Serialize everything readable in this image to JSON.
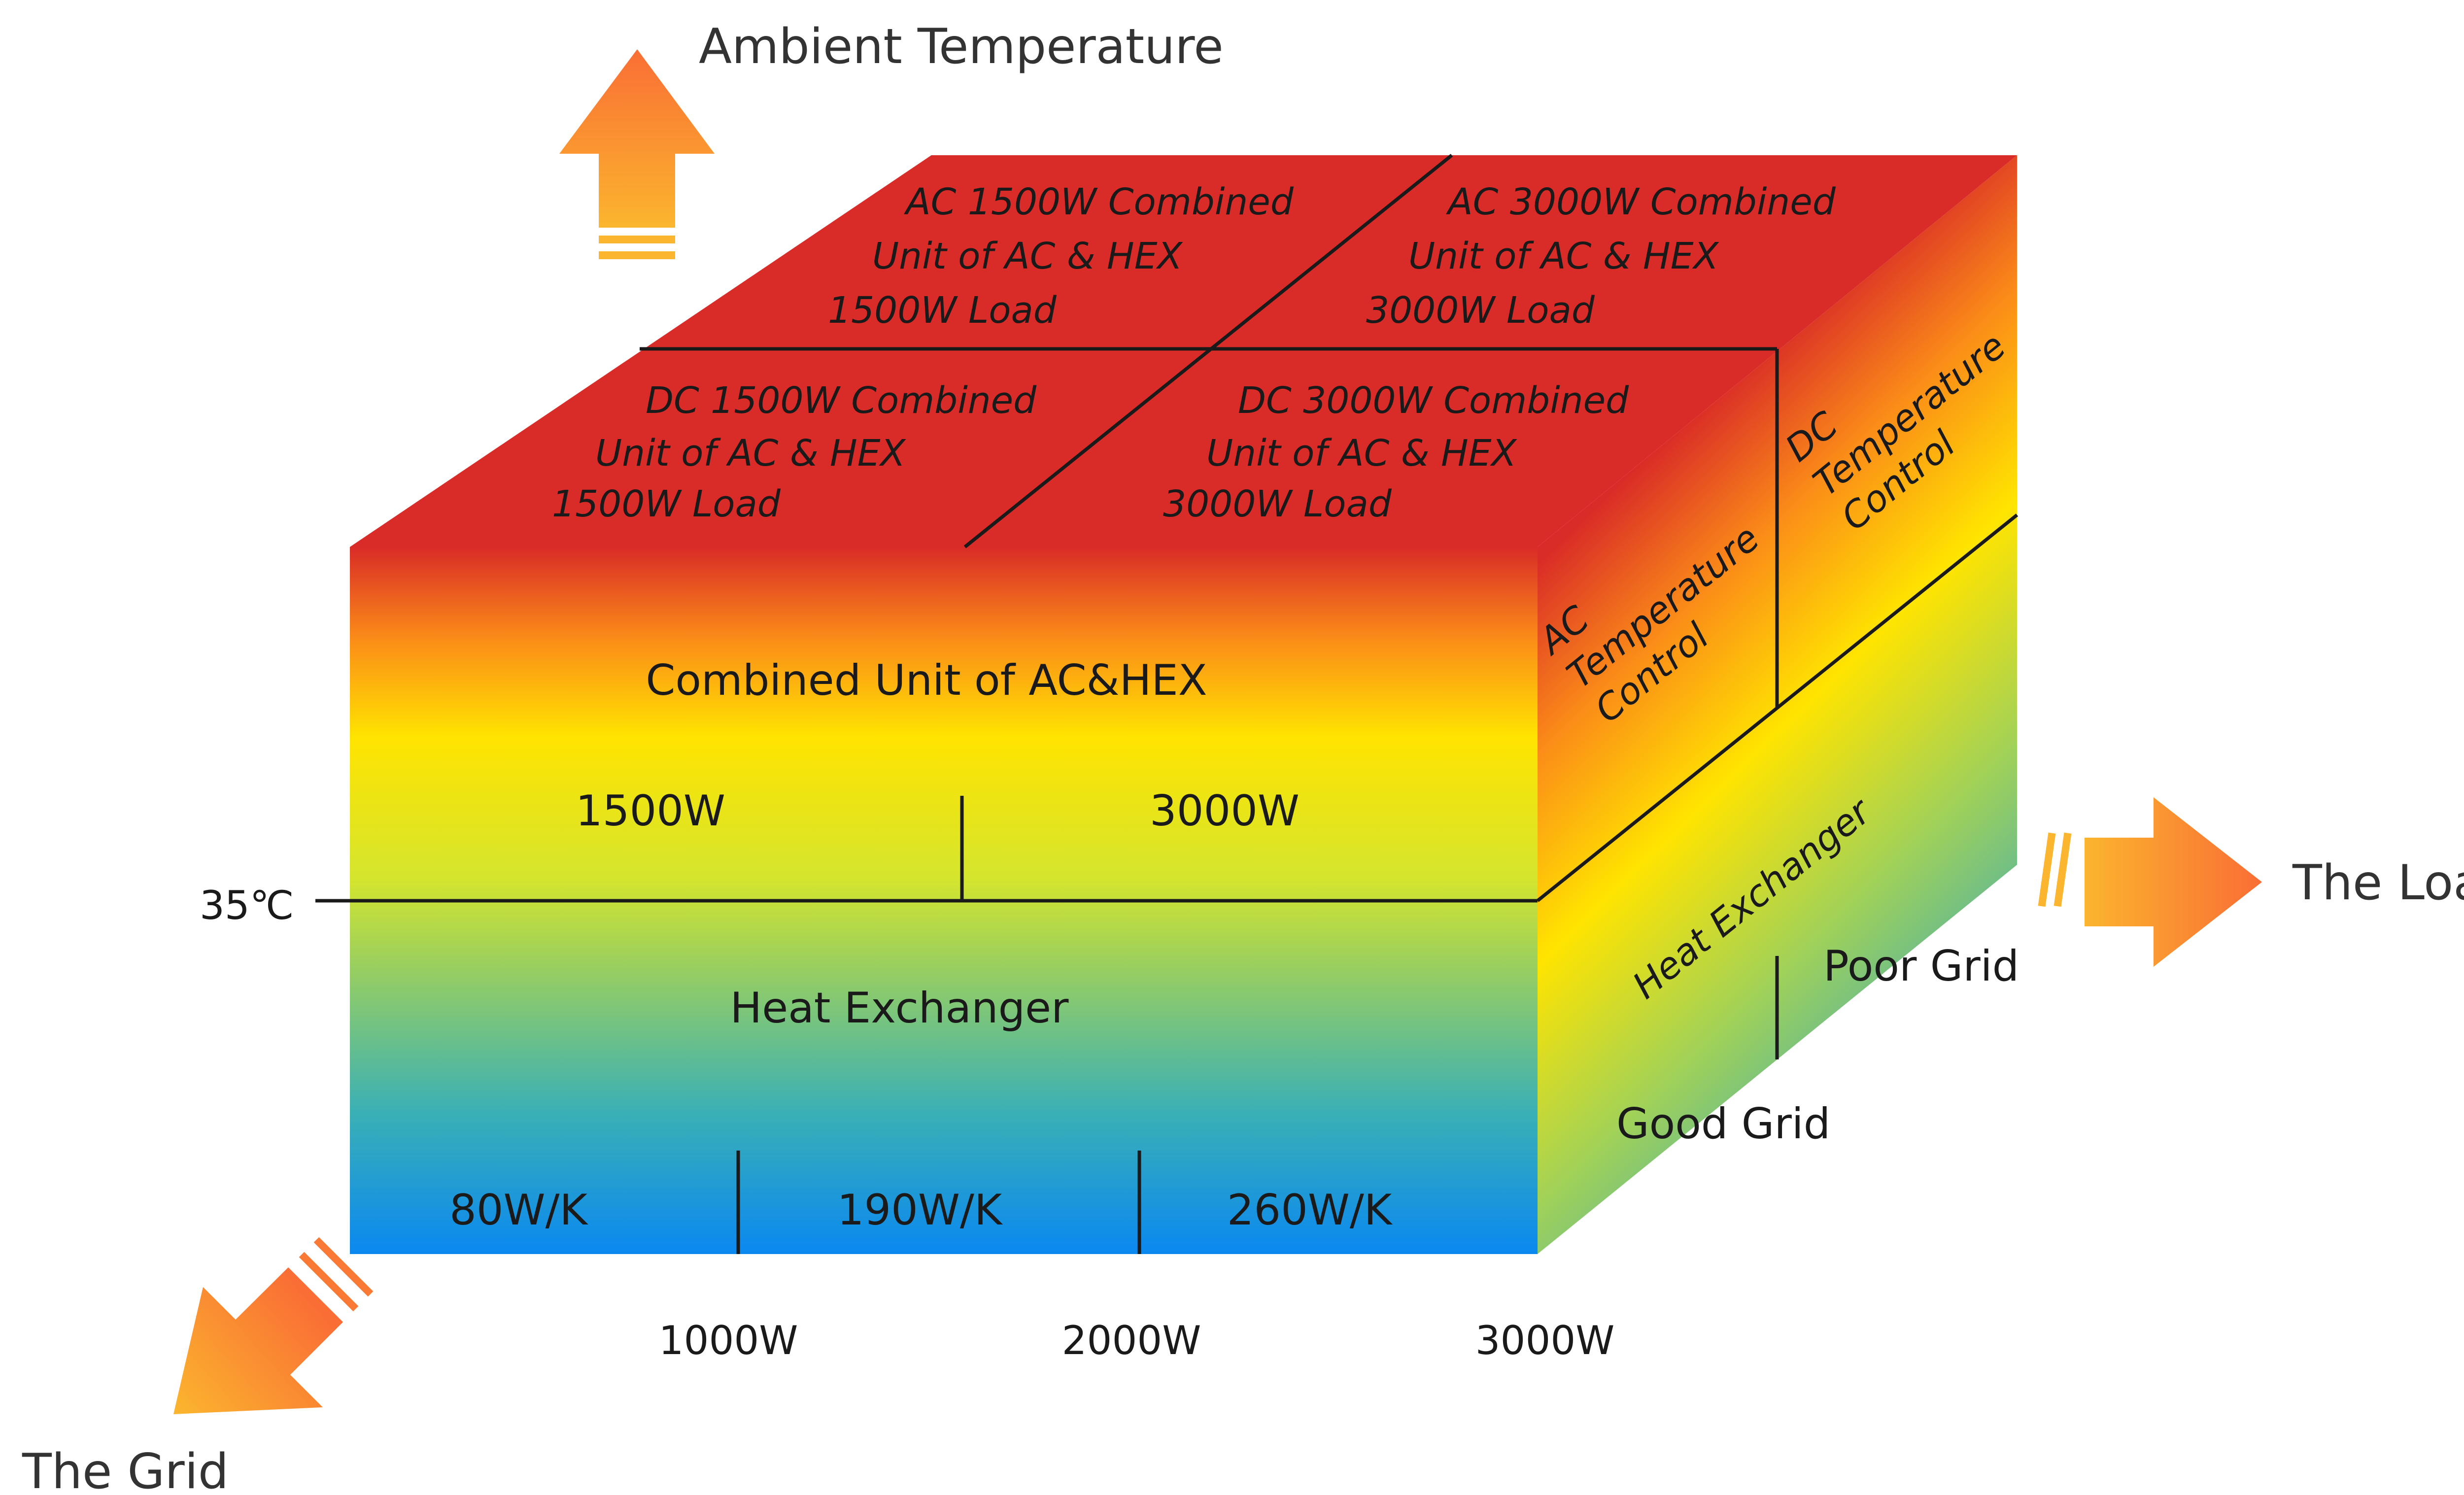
{
  "axes": {
    "up": "Ambient Temperature",
    "right": "The Load",
    "down_left": "The Grid"
  },
  "front": {
    "upper_title": "Combined Unit of AC&HEX",
    "upper_values": [
      "1500W",
      "3000W"
    ],
    "lower_title": "Heat Exchanger",
    "lower_values": [
      "80W/K",
      "190W/K",
      "260W/K"
    ],
    "temperature_marker": "35℃",
    "load_ticks": [
      "1000W",
      "2000W",
      "3000W"
    ]
  },
  "top": {
    "cells": [
      [
        "AC 1500W Combined",
        "Unit of AC & HEX",
        "1500W Load"
      ],
      [
        "AC 3000W Combined",
        "Unit of AC & HEX",
        "3000W Load"
      ],
      [
        "DC 1500W Combined",
        "Unit of AC & HEX",
        "1500W Load"
      ],
      [
        "DC 3000W Combined",
        "Unit of AC & HEX",
        "3000W Load"
      ]
    ]
  },
  "side": {
    "ac_control": [
      "AC",
      "Temperature",
      "Control"
    ],
    "dc_control": [
      "DC",
      "Temperature",
      "Control"
    ],
    "heat_exchanger": "Heat Exchanger",
    "good_grid": "Good Grid",
    "poor_grid": "Poor Grid"
  },
  "colors": {
    "hot": "#d92b27",
    "orange": "#fb8c18",
    "yellow": "#ffe400",
    "green": "#9fd15a",
    "blue": "#0a88f0",
    "arrow_light": "#fbb52e",
    "arrow_dark": "#fa6d35"
  }
}
